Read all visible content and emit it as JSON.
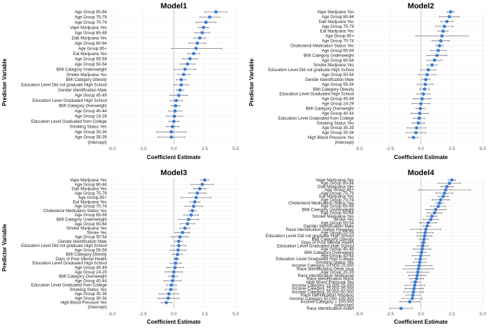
{
  "panels": [
    {
      "id": "model1",
      "title": "Model1",
      "xlabel": "Coefficient Estimate",
      "ylabel": "Predictor Variable",
      "colors": {
        "point": "#3b7dd8",
        "errorbar": "#777777",
        "zero_line": "#bbbbbb"
      },
      "chart_data": {
        "type": "scatter",
        "xticks": [
          -5.0,
          -2.5,
          0.0,
          2.5,
          5.0
        ],
        "xtick_labels": [
          "-5.0",
          "-2.5",
          "0.0",
          "2.5",
          "5.0"
        ],
        "xlim": [
          -5.3,
          5.3
        ],
        "categories": [
          "Age Group 80-84",
          "Age Group 75-79",
          "Age Group 70-74",
          "Vape Marijuana Yes",
          "Age Group 65-69",
          "Dab Marijuana Yes",
          "Age Group 60-64",
          "Age Group 85+",
          "Eat Marijuana Yes",
          "Age Group 55-59",
          "Age Group 50-54",
          "BMI Category Underweight",
          "Smoke Marijuana Yes",
          "BMI Category Obesity",
          "Education Level Did not graduate High School",
          "Gender Identification Male",
          "Age Group 45-49",
          "Education Level Graduated High School",
          "BMI Category Overweight",
          "Age Group 40-44",
          "Age Group 24-29",
          "Education Level Graduated from College",
          "Smoking Status Yes",
          "Age Group 30-34",
          "Age Group 35-39",
          "(Intercept)"
        ],
        "estimate": [
          3.4,
          2.9,
          2.6,
          2.4,
          2.3,
          2.1,
          1.9,
          1.8,
          1.6,
          1.3,
          1.1,
          0.9,
          0.8,
          0.6,
          0.6,
          0.5,
          0.4,
          0.2,
          0.15,
          0.1,
          0.05,
          0.0,
          -0.1,
          -0.2,
          -0.2,
          null
        ],
        "ci_low": [
          2.5,
          2.1,
          1.8,
          2.0,
          1.7,
          1.6,
          1.2,
          -0.2,
          1.1,
          0.7,
          0.5,
          0.0,
          0.3,
          0.2,
          0.0,
          0.2,
          -0.3,
          -0.3,
          -0.2,
          -0.4,
          -0.6,
          -0.4,
          -0.6,
          -1.4,
          -1.3,
          null
        ],
        "ci_high": [
          4.3,
          3.7,
          3.4,
          2.8,
          2.9,
          2.6,
          2.6,
          3.9,
          2.1,
          1.9,
          1.7,
          1.8,
          1.3,
          1.0,
          1.2,
          0.8,
          1.1,
          0.7,
          0.5,
          0.6,
          0.7,
          0.4,
          0.4,
          1.0,
          0.9,
          null
        ]
      }
    },
    {
      "id": "model2",
      "title": "Model2",
      "xlabel": "Coefficient Estimate",
      "ylabel": "Predictor Variable",
      "colors": {
        "point": "#3b7dd8",
        "errorbar": "#777777",
        "zero_line": "#bbbbbb"
      },
      "chart_data": {
        "type": "scatter",
        "xticks": [
          -5.0,
          -2.5,
          0.0,
          2.5,
          5.0
        ],
        "xtick_labels": [
          "-5.0",
          "-2.5",
          "0.0",
          "2.5",
          "5.0"
        ],
        "xlim": [
          -5.3,
          5.3
        ],
        "categories": [
          "Vape Marijuana Yes",
          "Age Group 80-84",
          "Dab Marijuana Yes",
          "Age Group 75-79",
          "Eat Marijuana Yes",
          "Age Group 85+",
          "Age Group 70-74",
          "Cholesterol Medication Status Yes",
          "Age Group 65-69",
          "BMI Category Underweight",
          "Age Group 60-64",
          "Smoke Marijuana Yes",
          "Education Level Did not graduate High School",
          "Age Group 50-54",
          "Gender Identification Male",
          "Age Group 55-59",
          "BMI Category Obesity",
          "Education Level Graduated High School",
          "Age Group 45-49",
          "Age Group 24-29",
          "BMI Category Overweight",
          "Age Group 40-44",
          "Education Level Graduated from College",
          "Smoking Status Yes",
          "Age Group 35-39",
          "Age Group 30-34",
          "High Blood Pressure Yes",
          "(Intercept)"
        ],
        "estimate": [
          2.4,
          2.3,
          2.1,
          1.9,
          1.8,
          1.7,
          1.6,
          1.5,
          1.4,
          1.3,
          1.1,
          0.9,
          0.6,
          0.5,
          0.4,
          0.35,
          0.3,
          0.2,
          0.1,
          0.0,
          -0.05,
          -0.1,
          -0.15,
          -0.2,
          -0.35,
          -0.4,
          -0.6,
          null
        ],
        "ci_low": [
          2.1,
          1.5,
          1.6,
          1.2,
          1.4,
          -0.4,
          0.9,
          1.2,
          0.8,
          0.5,
          0.5,
          0.5,
          0.0,
          -0.2,
          0.1,
          -0.3,
          -0.1,
          -0.3,
          -0.6,
          -0.7,
          -0.4,
          -0.8,
          -0.6,
          -0.7,
          -1.1,
          -1.2,
          -1.0,
          null
        ],
        "ci_high": [
          2.7,
          3.1,
          2.6,
          2.6,
          2.2,
          3.8,
          2.3,
          1.8,
          2.0,
          2.1,
          1.7,
          1.3,
          1.2,
          1.2,
          0.7,
          1.0,
          0.7,
          0.7,
          0.8,
          0.7,
          0.3,
          0.6,
          0.3,
          0.3,
          0.4,
          0.4,
          -0.2,
          null
        ]
      }
    },
    {
      "id": "model3",
      "title": "Model3",
      "xlabel": "Coefficient Estimate",
      "ylabel": "Predictor Variable",
      "colors": {
        "point": "#3b7dd8",
        "errorbar": "#777777",
        "zero_line": "#bbbbbb"
      },
      "chart_data": {
        "type": "scatter",
        "xticks": [
          -5.0,
          -2.5,
          0.0,
          2.5,
          5.0
        ],
        "xtick_labels": [
          "-5.0",
          "-2.5",
          "0.0",
          "2.5",
          "5.0"
        ],
        "xlim": [
          -5.3,
          5.3
        ],
        "categories": [
          "Vape Marijuana Yes",
          "Age Group 80-84",
          "Dab Marijuana Yes",
          "Age Group 75-79",
          "Age Group 85+",
          "Eat Marijuana Yes",
          "Age Group 70-74",
          "Cholesterol Medication Status Yes",
          "Age Group 65-69",
          "BMI Category Underweight",
          "Age Group 60-64",
          "Smoke Marijuana Yes",
          "Stroke Yes",
          "Age Group 50-54",
          "Gender Identification Male",
          "Education Level Did not graduate High School",
          "Age Group 55-59",
          "BMI Category Obesity",
          "Days of Poor Mental Health",
          "Education Level Graduated High School",
          "Age Group 45-49",
          "Age Group 24-29",
          "BMI Category Overweight",
          "Age Group 40-44",
          "Education Level Graduated from College",
          "Smoking Status Yes",
          "Age Group 35-39",
          "Age Group 30-34",
          "High Blood Pressure Yes",
          "(Intercept)"
        ],
        "estimate": [
          2.5,
          2.3,
          2.1,
          1.9,
          1.8,
          1.7,
          1.6,
          1.5,
          1.4,
          1.2,
          1.1,
          0.9,
          0.7,
          0.5,
          0.4,
          0.4,
          0.35,
          0.3,
          0.2,
          0.15,
          0.1,
          0.0,
          -0.05,
          -0.1,
          -0.2,
          -0.25,
          -0.4,
          -0.45,
          -0.6,
          null
        ],
        "ci_low": [
          2.2,
          1.4,
          1.6,
          1.2,
          0.6,
          1.3,
          0.9,
          1.2,
          0.8,
          0.4,
          0.5,
          0.5,
          0.1,
          -0.2,
          0.1,
          -0.2,
          -0.3,
          -0.1,
          0.0,
          -0.3,
          -0.6,
          -0.7,
          -0.4,
          -0.8,
          -0.6,
          -0.7,
          -1.2,
          -1.3,
          -1.0,
          null
        ],
        "ci_high": [
          2.8,
          3.2,
          2.6,
          2.6,
          3.0,
          2.1,
          2.3,
          1.8,
          2.0,
          2.0,
          1.7,
          1.3,
          1.3,
          1.2,
          0.7,
          1.0,
          1.0,
          0.7,
          0.4,
          0.6,
          0.8,
          0.7,
          0.3,
          0.6,
          0.2,
          0.2,
          0.4,
          0.4,
          -0.2,
          null
        ]
      }
    },
    {
      "id": "model4",
      "title": "Model4",
      "xlabel": "Coefficient Estimate",
      "ylabel": "",
      "colors": {
        "point": "#3b7dd8",
        "errorbar": "#777777",
        "zero_line": "#bbbbbb"
      },
      "chart_data": {
        "type": "scatter",
        "xticks": [
          -5.0,
          -2.5,
          0.0,
          2.5,
          5.0
        ],
        "xtick_labels": [
          "-5.0",
          "-2.5",
          "0.0",
          "2.5",
          "5.0"
        ],
        "xlim": [
          -5.3,
          5.3
        ],
        "categories": [
          "Vape Marijuana Yes",
          "Age Group 80-84",
          "Dab Marijuana Yes",
          "Age Group 85+",
          "Age Group 75-79",
          "Eat Marijuana Yes",
          "Age Group 70-74",
          "Cholesterol Medication Status Yes",
          "Age Group 65-69",
          "BMI Category Underweight",
          "Age Group 60-64",
          "Smoke Marijuana Yes",
          "Stroke Yes",
          "Age Group 50-54",
          "Gender Identification Male",
          "Race Identification Native Hawaiian",
          "Age Group 55-59",
          "Education Level Did not graduate High School",
          "BMI Category Obesity",
          "Days of Poor Mental Health",
          "Education Level Graduated High School",
          "Age Group 45-49",
          "BMI Category Overweight",
          "Age Group 40-44",
          "Education Level Graduated from College",
          "Smoking Status Yes",
          "Income Category 10,000-15,000",
          "Race Identification Other race",
          "Age Group 35-39",
          "Race Identification Multiracial",
          "Race Identification Black",
          "High Blood Pressure Yes",
          "Income Category 15,000-25,000",
          "Income Category 25,000-35,000",
          "Income Category 35,000-50,000",
          "Race Identification Hispanic",
          "Income Category 50,000-100,000",
          "Income Category > 100,000",
          "(Intercept)",
          "Race Identification Asian"
        ],
        "estimate": [
          2.5,
          2.3,
          2.1,
          2.0,
          1.9,
          1.8,
          1.6,
          1.5,
          1.4,
          1.2,
          1.1,
          0.9,
          0.8,
          0.6,
          0.5,
          0.4,
          0.35,
          0.3,
          0.25,
          0.2,
          0.15,
          0.1,
          0.05,
          0.0,
          -0.05,
          -0.1,
          -0.15,
          -0.2,
          -0.25,
          -0.3,
          -0.35,
          -0.45,
          -0.5,
          -0.55,
          -0.6,
          -0.65,
          -0.7,
          -0.9,
          null,
          -1.6
        ],
        "ci_low": [
          2.2,
          1.4,
          1.6,
          -0.2,
          1.2,
          1.4,
          0.9,
          1.2,
          0.8,
          0.4,
          0.5,
          0.5,
          0.2,
          -0.1,
          0.2,
          -0.8,
          -0.3,
          -0.3,
          -0.1,
          0.0,
          -0.3,
          -0.6,
          -0.3,
          -0.7,
          -0.5,
          -0.6,
          -1.2,
          -1.4,
          -1.1,
          -1.0,
          -0.9,
          -0.8,
          -1.3,
          -1.3,
          -1.4,
          -1.2,
          -1.5,
          -1.7,
          null,
          -2.5
        ],
        "ci_high": [
          2.8,
          3.2,
          2.6,
          4.0,
          2.6,
          2.2,
          2.3,
          1.8,
          2.0,
          2.0,
          1.7,
          1.3,
          1.4,
          1.3,
          0.8,
          1.6,
          1.0,
          0.9,
          0.6,
          0.4,
          0.6,
          0.8,
          0.4,
          0.7,
          0.4,
          0.4,
          0.9,
          1.0,
          0.6,
          0.4,
          0.2,
          -0.1,
          0.3,
          0.2,
          0.2,
          -0.1,
          0.1,
          -0.1,
          null,
          -0.7
        ]
      }
    }
  ]
}
